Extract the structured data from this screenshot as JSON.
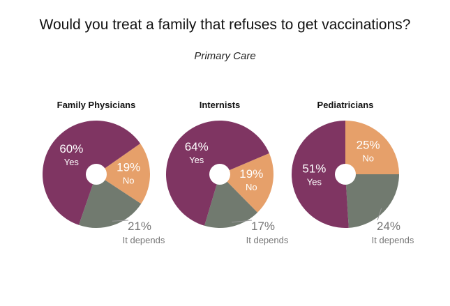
{
  "title": "Would you treat a family that refuses to get vaccinations?",
  "subtitle": "Primary Care",
  "colors": {
    "yes": "#7f3562",
    "no": "#e6a06a",
    "depends": "#717a6f",
    "label_light": "#ffffff",
    "label_depends": "#777777",
    "panel_title": "#111111"
  },
  "chart_data": [
    {
      "type": "pie",
      "title": "Family Physicians",
      "slices": [
        {
          "key": "yes",
          "label": "Yes",
          "value": 60,
          "value_text": "60%"
        },
        {
          "key": "no",
          "label": "No",
          "value": 19,
          "value_text": "19%"
        },
        {
          "key": "depends",
          "label": "It depends",
          "value": 21,
          "value_text": "21%"
        }
      ]
    },
    {
      "type": "pie",
      "title": "Internists",
      "slices": [
        {
          "key": "yes",
          "label": "Yes",
          "value": 64,
          "value_text": "64%"
        },
        {
          "key": "no",
          "label": "No",
          "value": 19,
          "value_text": "19%"
        },
        {
          "key": "depends",
          "label": "It depends",
          "value": 17,
          "value_text": "17%"
        }
      ]
    },
    {
      "type": "pie",
      "title": "Pediatricians",
      "slices": [
        {
          "key": "yes",
          "label": "Yes",
          "value": 51,
          "value_text": "51%"
        },
        {
          "key": "no",
          "label": "No",
          "value": 25,
          "value_text": "25%"
        },
        {
          "key": "depends",
          "label": "It depends",
          "value": 24,
          "value_text": "24%"
        }
      ]
    }
  ]
}
